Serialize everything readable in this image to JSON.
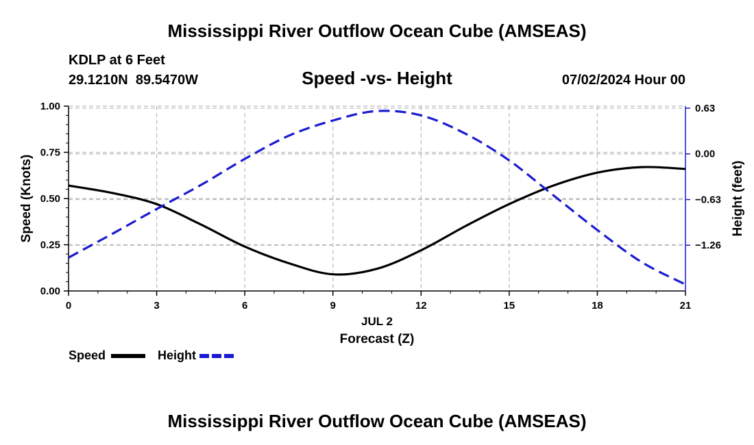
{
  "header": {
    "main_title": "Mississippi River Outflow Ocean Cube (AMSEAS)",
    "station": "KDLP at 6 Feet",
    "coords": "29.1210N  89.5470W",
    "chart_title": "Speed -vs- Height",
    "datetime": "07/02/2024 Hour 00",
    "footer_title": "Mississippi River Outflow Ocean Cube (AMSEAS)"
  },
  "legend": {
    "speed_label": "Speed",
    "height_label": "Height"
  },
  "colors": {
    "speed": "#000000",
    "height": "#1a1ad0",
    "grid": "#bbbbbb"
  },
  "chart_data": {
    "type": "line",
    "title": "Speed -vs- Height",
    "xlabel": "Forecast (Z)",
    "xdate": "JUL 2",
    "ylabel_left": "Speed (Knots)",
    "ylabel_right": "Height (feet)",
    "xlim": [
      0,
      21
    ],
    "x_ticks": [
      0,
      3,
      6,
      9,
      12,
      15,
      18,
      21
    ],
    "y_left_lim": [
      0,
      1
    ],
    "y_left_ticks": [
      0.0,
      0.25,
      0.5,
      0.75,
      1.0
    ],
    "y_left_tick_labels": [
      "0.00",
      "0.25",
      "0.50",
      "0.75",
      "1.00"
    ],
    "y_right_lim": [
      -1.89,
      0.658
    ],
    "y_right_ticks": [
      -1.26,
      -0.63,
      0.0,
      0.63
    ],
    "y_right_tick_labels": [
      "−1.26",
      "−0.63",
      "0.00",
      "0.63"
    ],
    "grid": true,
    "series": [
      {
        "name": "Speed",
        "axis": "left",
        "style": "solid",
        "x": [
          0,
          1.5,
          3,
          4.5,
          6,
          7.5,
          9,
          10.5,
          12,
          13.5,
          15,
          16.5,
          18,
          19.5,
          21
        ],
        "values": [
          0.57,
          0.53,
          0.47,
          0.36,
          0.24,
          0.15,
          0.09,
          0.12,
          0.22,
          0.35,
          0.47,
          0.57,
          0.64,
          0.67,
          0.66
        ]
      },
      {
        "name": "Height",
        "axis": "right",
        "style": "dashed",
        "x": [
          0,
          1.5,
          3,
          4.5,
          6,
          7.5,
          9,
          10.5,
          12,
          13.5,
          15,
          16.5,
          18,
          19.5,
          21
        ],
        "values": [
          -1.43,
          -1.1,
          -0.76,
          -0.43,
          -0.07,
          0.25,
          0.46,
          0.59,
          0.53,
          0.28,
          -0.09,
          -0.57,
          -1.05,
          -1.49,
          -1.8
        ]
      }
    ]
  }
}
